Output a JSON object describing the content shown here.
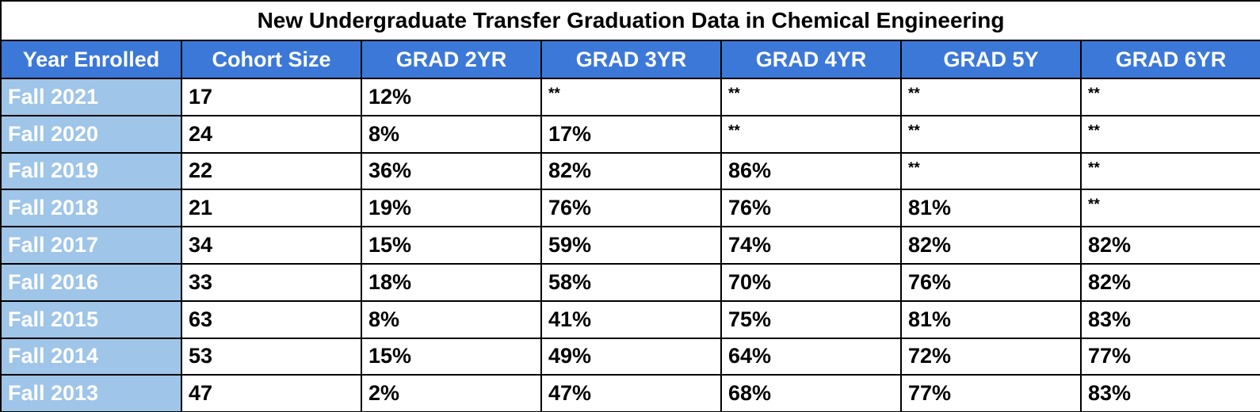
{
  "table": {
    "title": "New Undergraduate Transfer Graduation Data in Chemical Engineering",
    "headers": [
      "Year Enrolled",
      "Cohort Size",
      "GRAD 2YR",
      "GRAD 3YR",
      "GRAD 4YR",
      "GRAD 5Y",
      "GRAD 6YR"
    ],
    "rows": [
      [
        "Fall 2021",
        "17",
        "12%",
        "**",
        "**",
        "**",
        "**"
      ],
      [
        "Fall 2020",
        "24",
        "8%",
        "17%",
        "**",
        "**",
        "**"
      ],
      [
        "Fall 2019",
        "22",
        "36%",
        "82%",
        "86%",
        "**",
        "**"
      ],
      [
        "Fall 2018",
        "21",
        "19%",
        "76%",
        "76%",
        "81%",
        "**"
      ],
      [
        "Fall 2017",
        "34",
        "15%",
        "59%",
        "74%",
        "82%",
        "82%"
      ],
      [
        "Fall 2016",
        "33",
        "18%",
        "58%",
        "70%",
        "76%",
        "82%"
      ],
      [
        "Fall 2015",
        "63",
        "8%",
        "41%",
        "75%",
        "81%",
        "83%"
      ],
      [
        "Fall 2014",
        "53",
        "15%",
        "49%",
        "64%",
        "72%",
        "77%"
      ],
      [
        "Fall 2013",
        "47",
        "2%",
        "47%",
        "68%",
        "77%",
        "83%"
      ]
    ]
  }
}
